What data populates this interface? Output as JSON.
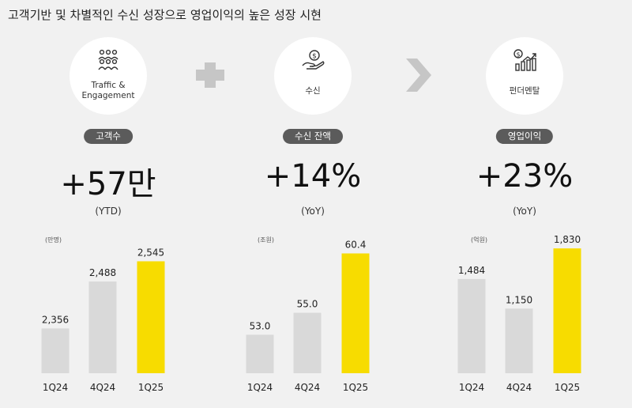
{
  "title": "고객기반 및 차별적인 수신 성장으로 영업이익의 높은 성장 시현",
  "panels": [
    {
      "icon": "people-icon",
      "icon_label_1": "Traffic &",
      "icon_label_2": "Engagement",
      "pill": "고객수",
      "big": "+57만",
      "sub": "(YTD)",
      "unit": "(만명)"
    },
    {
      "icon": "money-hand-icon",
      "icon_label_1": "수신",
      "icon_label_2": "",
      "pill": "수신 잔액",
      "big": "+14%",
      "sub": "(YoY)",
      "unit": "(조원)"
    },
    {
      "icon": "growth-chart-icon",
      "icon_label_1": "펀더멘탈",
      "icon_label_2": "",
      "pill": "영업이익",
      "big": "+23%",
      "sub": "(YoY)",
      "unit": "(억원)"
    }
  ],
  "operators": {
    "plus": "plus-icon",
    "arrow": "chevron-right-icon"
  },
  "colors": {
    "gray_bar": "#d9d9d9",
    "highlight_bar": "#f7dc00",
    "pill": "#5b5b5b"
  },
  "chart_data": [
    {
      "type": "bar",
      "title": "",
      "unit": "(만명)",
      "categories": [
        "1Q24",
        "4Q24",
        "1Q25"
      ],
      "values": [
        2356,
        2488,
        2545
      ],
      "labels": [
        "2,356",
        "2,488",
        "2,545"
      ],
      "highlight_index": 2,
      "ylim": [
        2230,
        2595
      ]
    },
    {
      "type": "bar",
      "title": "",
      "unit": "(조원)",
      "categories": [
        "1Q24",
        "4Q24",
        "1Q25"
      ],
      "values": [
        53.0,
        55.0,
        60.4
      ],
      "labels": [
        "53.0",
        "55.0",
        "60.4"
      ],
      "highlight_index": 2,
      "ylim": [
        49.5,
        61.3
      ]
    },
    {
      "type": "bar",
      "title": "",
      "unit": "(억원)",
      "categories": [
        "1Q24",
        "4Q24",
        "1Q25"
      ],
      "values": [
        1484,
        1150,
        1830
      ],
      "labels": [
        "1,484",
        "1,150",
        "1,830"
      ],
      "highlight_index": 2,
      "ylim": [
        420,
        1885
      ]
    }
  ]
}
